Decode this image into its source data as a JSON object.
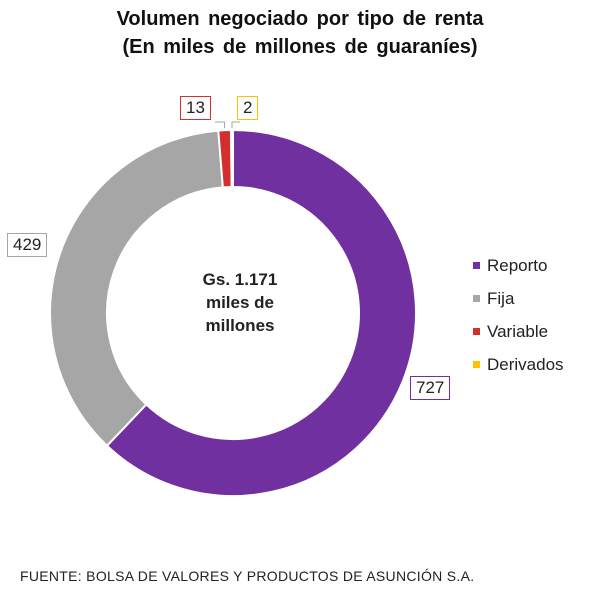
{
  "chart_data": {
    "type": "pie",
    "title": "Volumen negociado por tipo de renta",
    "subtitle": "(En miles de millones de guaraníes)",
    "center_text": [
      "Gs. 1.171",
      "miles de",
      "millones"
    ],
    "categories": [
      "Reporto",
      "Fija",
      "Variable",
      "Derivados"
    ],
    "values": [
      727,
      429,
      13,
      2
    ],
    "colors": [
      "#7030A0",
      "#A6A6A6",
      "#D32F2F",
      "#FFC000"
    ],
    "legend_position": "right",
    "donut": true
  },
  "footer": "FUENTE: BOLSA DE VALORES Y PRODUCTOS DE ASUNCIÓN S.A."
}
